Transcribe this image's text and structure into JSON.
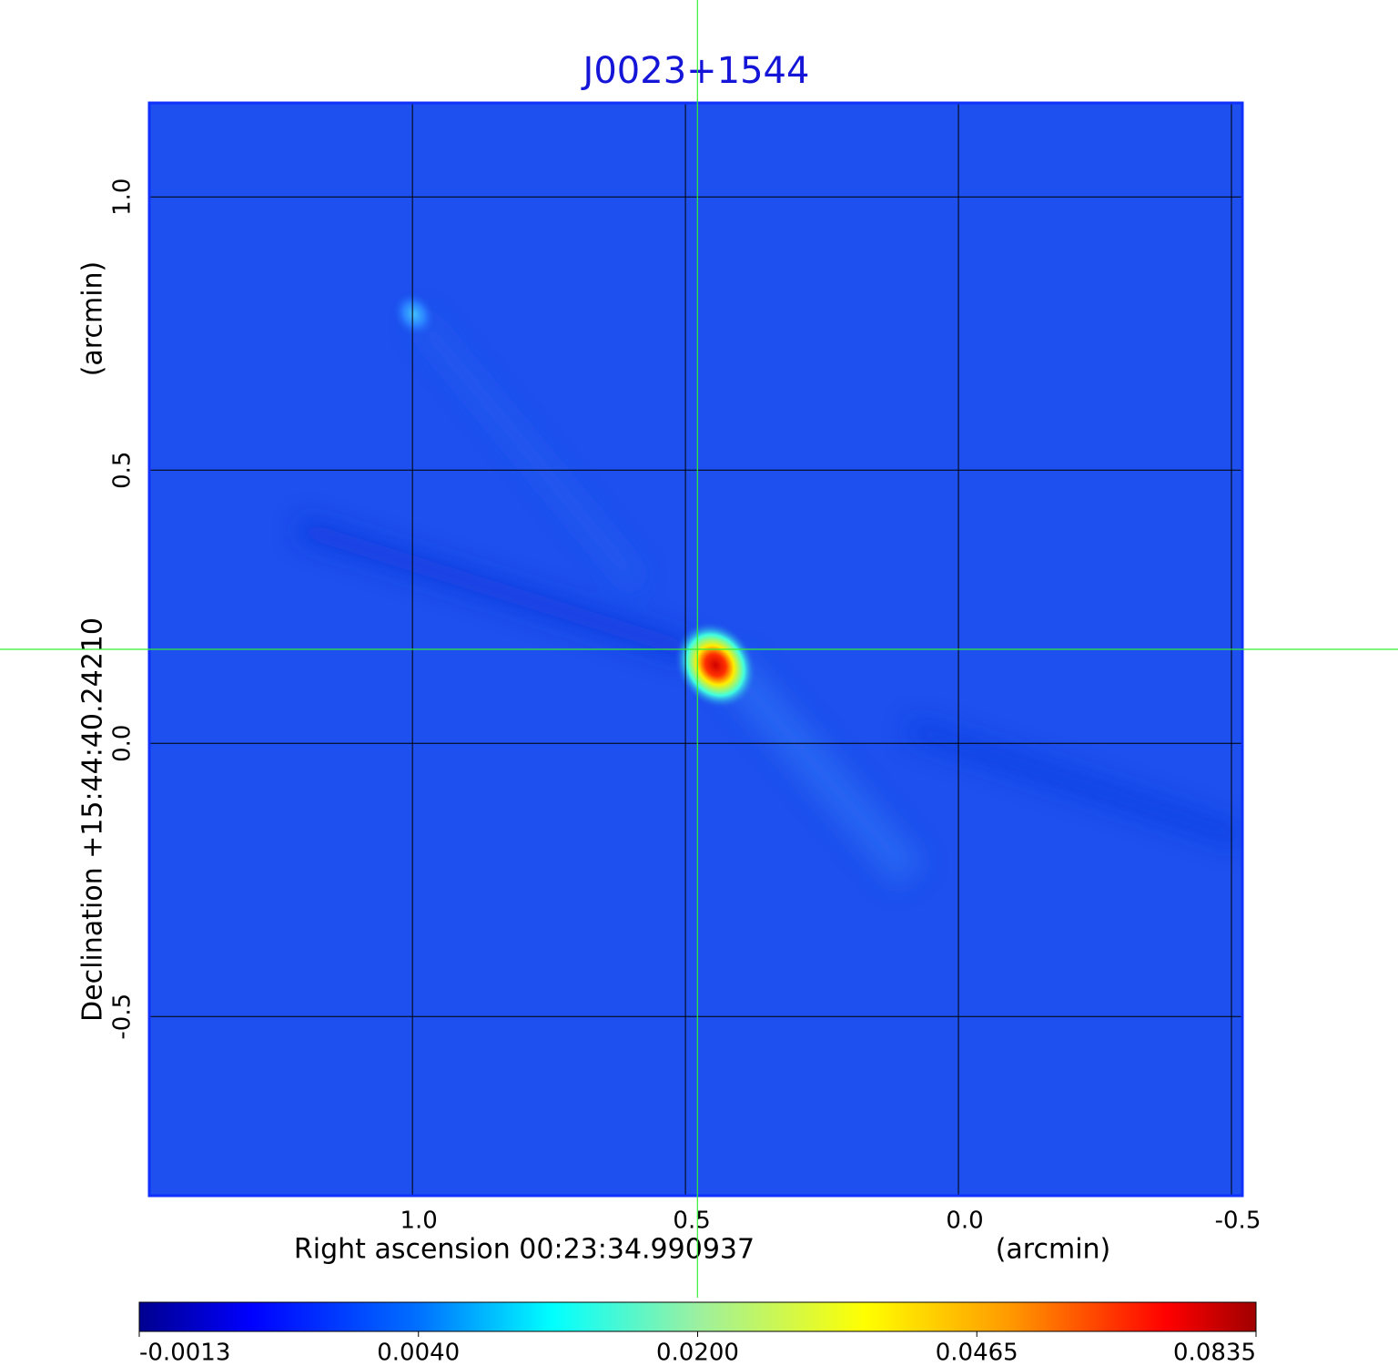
{
  "chart_data": {
    "type": "image",
    "title": "J0023+1544",
    "x_label": "Right ascension  00:23:34.990937",
    "x_unit": "(arcmin)",
    "y_label": "Declination  +15:44:40.24210",
    "y_unit": "(arcmin)",
    "xlim": [
      1.482,
      -0.52
    ],
    "ylim": [
      -0.828,
      1.172
    ],
    "xticks": [
      {
        "value": 1.0,
        "label": "1.0"
      },
      0.5,
      {
        "value": 0.0,
        "label": "0.0"
      },
      -0.5
    ],
    "yticks": [
      {
        "value": 1.0,
        "label": "1.0"
      },
      0.5,
      {
        "value": 0.0,
        "label": "0.0"
      },
      -0.5
    ],
    "grid": true,
    "crosshair": [
      0.478,
      0.172
    ],
    "sources": [
      {
        "x": 0.445,
        "y": 0.143,
        "value": 0.0835
      },
      {
        "x": 0.997,
        "y": 0.785,
        "value": 0.012
      }
    ],
    "colorbar_ticks": [
      -0.0013,
      {
        "value": 0.004,
        "label": "0.0040"
      },
      {
        "value": 0.02,
        "label": "0.0200"
      },
      0.0465,
      0.0835
    ]
  }
}
